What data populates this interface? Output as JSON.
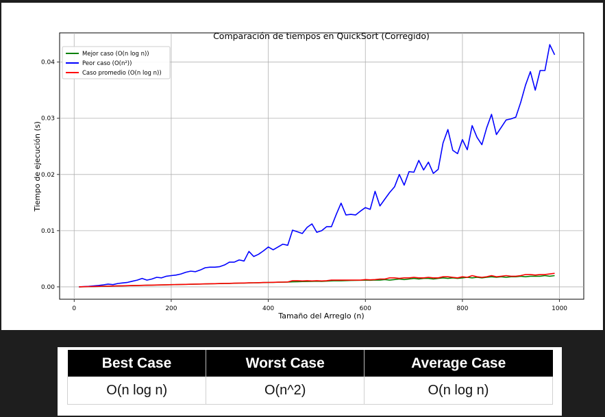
{
  "chart_data": {
    "type": "line",
    "title": "Comparación de tiempos en QuickSort (Corregido)",
    "xlabel": "Tamaño del Arreglo (n)",
    "ylabel": "Tiempo de ejecución (s)",
    "xlim": [
      -30,
      1050
    ],
    "ylim": [
      -0.0022,
      0.0452
    ],
    "xticks": [
      0,
      200,
      400,
      600,
      800,
      1000
    ],
    "xtick_labels": [
      "0",
      "200",
      "400",
      "600",
      "800",
      "1000"
    ],
    "yticks": [
      0.0,
      0.01,
      0.02,
      0.03,
      0.04
    ],
    "ytick_labels": [
      "0.00",
      "0.01",
      "0.02",
      "0.03",
      "0.04"
    ],
    "grid": true,
    "legend_position": "top-left",
    "x": [
      10,
      20,
      30,
      40,
      50,
      60,
      70,
      80,
      90,
      100,
      110,
      120,
      130,
      140,
      150,
      160,
      170,
      180,
      190,
      200,
      210,
      220,
      230,
      240,
      250,
      260,
      270,
      280,
      290,
      300,
      310,
      320,
      330,
      340,
      350,
      360,
      370,
      380,
      390,
      400,
      410,
      420,
      430,
      440,
      450,
      460,
      470,
      480,
      490,
      500,
      510,
      520,
      530,
      540,
      550,
      560,
      570,
      580,
      590,
      600,
      610,
      620,
      630,
      640,
      650,
      660,
      670,
      680,
      690,
      700,
      710,
      720,
      730,
      740,
      750,
      760,
      770,
      780,
      790,
      800,
      810,
      820,
      830,
      840,
      850,
      860,
      870,
      880,
      890,
      900,
      910,
      920,
      930,
      940,
      950,
      960,
      970,
      980,
      990
    ],
    "series": [
      {
        "name": "Mejor caso (O(n log n))",
        "color": "#008000",
        "values": [
          1e-05,
          2e-05,
          4e-05,
          6e-05,
          8e-05,
          0.0001,
          0.00012,
          0.00014,
          0.00016,
          0.00018,
          0.0002,
          0.00022,
          0.00024,
          0.00026,
          0.00028,
          0.0003,
          0.00032,
          0.00034,
          0.00036,
          0.00038,
          0.0004,
          0.00042,
          0.00044,
          0.00046,
          0.00048,
          0.0005,
          0.00052,
          0.00054,
          0.00056,
          0.00058,
          0.0006,
          0.00062,
          0.00064,
          0.00066,
          0.00068,
          0.0007,
          0.00072,
          0.00074,
          0.00076,
          0.00078,
          0.0008,
          0.00082,
          0.00084,
          0.00086,
          0.0009,
          0.00092,
          0.00094,
          0.00096,
          0.00098,
          0.001,
          0.00098,
          0.00102,
          0.00106,
          0.0011,
          0.00108,
          0.00112,
          0.00114,
          0.00116,
          0.00118,
          0.0012,
          0.00118,
          0.00122,
          0.0012,
          0.0013,
          0.0012,
          0.0013,
          0.0014,
          0.0013,
          0.0014,
          0.0015,
          0.0014,
          0.0015,
          0.0015,
          0.0014,
          0.0015,
          0.0016,
          0.0015,
          0.0016,
          0.0015,
          0.0016,
          0.0017,
          0.0016,
          0.0017,
          0.0016,
          0.0017,
          0.0018,
          0.0017,
          0.0018,
          0.0017,
          0.0018,
          0.0018,
          0.0019,
          0.0018,
          0.0019,
          0.0019,
          0.0019,
          0.002,
          0.0019,
          0.002
        ]
      },
      {
        "name": "Peor caso (O(n²))",
        "color": "#0000ff",
        "values": [
          1e-05,
          4e-05,
          9e-05,
          0.00016,
          0.00025,
          0.00036,
          0.00049,
          0.0004,
          0.0006,
          0.0007,
          0.0008,
          0.001,
          0.0012,
          0.0015,
          0.0012,
          0.0014,
          0.0017,
          0.0016,
          0.0019,
          0.002,
          0.0021,
          0.0023,
          0.0026,
          0.0028,
          0.0027,
          0.003,
          0.0034,
          0.0035,
          0.0035,
          0.0036,
          0.0039,
          0.0044,
          0.0044,
          0.0048,
          0.0046,
          0.0063,
          0.0054,
          0.0058,
          0.0064,
          0.0071,
          0.0066,
          0.0071,
          0.0076,
          0.0074,
          0.0101,
          0.0098,
          0.0095,
          0.0106,
          0.0112,
          0.0097,
          0.01,
          0.0107,
          0.0107,
          0.0129,
          0.0149,
          0.0128,
          0.0129,
          0.0128,
          0.0135,
          0.0141,
          0.0138,
          0.017,
          0.0144,
          0.0156,
          0.0168,
          0.0178,
          0.02,
          0.0181,
          0.0205,
          0.0204,
          0.0225,
          0.0208,
          0.0222,
          0.0202,
          0.0209,
          0.0256,
          0.028,
          0.0243,
          0.0237,
          0.0262,
          0.0244,
          0.0287,
          0.0266,
          0.0253,
          0.0283,
          0.0307,
          0.0271,
          0.0284,
          0.0297,
          0.0299,
          0.0302,
          0.0328,
          0.0359,
          0.0383,
          0.035,
          0.0385,
          0.0385,
          0.0431,
          0.0413
        ]
      },
      {
        "name": "Caso promedio (O(n log n))",
        "color": "#ff0000",
        "values": [
          1e-05,
          3e-05,
          5e-05,
          7e-05,
          9e-05,
          0.00011,
          0.00013,
          0.00015,
          0.00017,
          0.00019,
          0.00021,
          0.00023,
          0.00025,
          0.00027,
          0.00029,
          0.00031,
          0.00033,
          0.00035,
          0.00037,
          0.00039,
          0.00041,
          0.00043,
          0.00045,
          0.00047,
          0.00049,
          0.00051,
          0.00053,
          0.00055,
          0.00057,
          0.00059,
          0.00061,
          0.00063,
          0.00065,
          0.00067,
          0.00069,
          0.00071,
          0.00073,
          0.00075,
          0.00077,
          0.00079,
          0.00081,
          0.00083,
          0.00085,
          0.00087,
          0.0011,
          0.0011,
          0.00105,
          0.0011,
          0.00105,
          0.0011,
          0.00105,
          0.0011,
          0.0012,
          0.0012,
          0.0012,
          0.0012,
          0.0012,
          0.0012,
          0.0012,
          0.0013,
          0.00125,
          0.0013,
          0.0014,
          0.0014,
          0.0016,
          0.0016,
          0.0015,
          0.0016,
          0.0016,
          0.0017,
          0.0016,
          0.0016,
          0.0017,
          0.0016,
          0.0016,
          0.0018,
          0.0018,
          0.0017,
          0.0016,
          0.0018,
          0.0017,
          0.002,
          0.0018,
          0.0017,
          0.0018,
          0.002,
          0.0018,
          0.0019,
          0.002,
          0.0019,
          0.0019,
          0.002,
          0.0022,
          0.0022,
          0.0021,
          0.0022,
          0.0022,
          0.0023,
          0.0024
        ]
      }
    ]
  },
  "table": {
    "headers": [
      "Best Case",
      "Worst Case",
      "Average Case"
    ],
    "row": [
      "O(n log n)",
      "O(n^2)",
      "O(n log n)"
    ]
  }
}
